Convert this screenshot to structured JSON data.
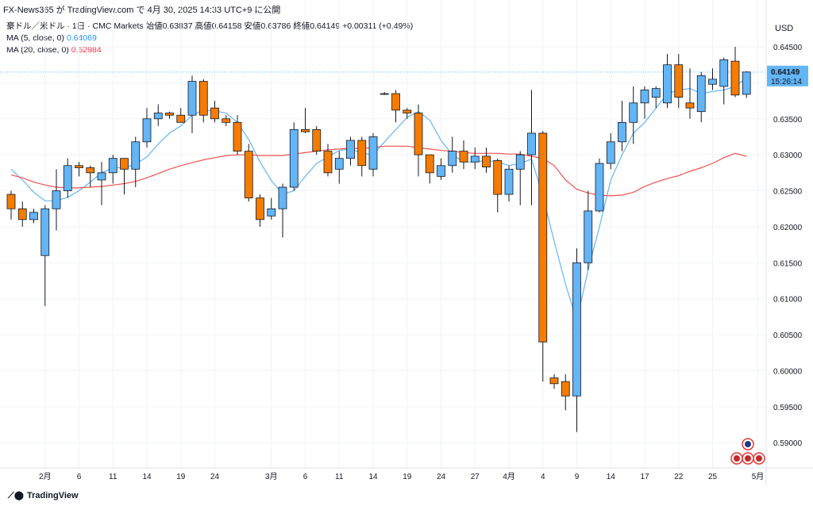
{
  "header": {
    "caption": "FX-News365 が TradingView.com で 4月 30, 2025 14:33 UTC+9 に公開",
    "symbol_line": "豪ドル／米ドル · 1日 · CMC Markets",
    "ohlc": "始値0.63837  高値0.64158  安値0.63786  終値0.64149  +0.00311 (+0.49%)",
    "ma5_label": "MA (5, close, 0)",
    "ma5_value": "0.64069",
    "ma20_label": "MA (20, close, 0)",
    "ma20_value": "0.62984",
    "currency": "USD"
  },
  "price_badge": {
    "price": "0.64149",
    "countdown": "15:26:14"
  },
  "footer": {
    "brand": "TradingView"
  },
  "colors": {
    "up": "#64b5f6",
    "down": "#f57c00",
    "ma5": "#64b5f6",
    "ma20": "#ef5350",
    "wick": "#131722"
  },
  "chart_data": {
    "type": "candlestick",
    "title": "豪ドル／米ドル · 1日 · CMC Markets",
    "ylim": [
      0.5865,
      0.6515
    ],
    "y_ticks": [
      "0.59000",
      "0.59500",
      "0.60000",
      "0.60500",
      "0.61000",
      "0.61500",
      "0.62000",
      "0.62500",
      "0.63000",
      "0.63500",
      "0.64000",
      "0.64500"
    ],
    "x_labels": [
      {
        "i": 3,
        "label": "2月"
      },
      {
        "i": 6,
        "label": "6"
      },
      {
        "i": 9,
        "label": "11"
      },
      {
        "i": 12,
        "label": "14"
      },
      {
        "i": 15,
        "label": "19"
      },
      {
        "i": 18,
        "label": "24"
      },
      {
        "i": 23,
        "label": "3月"
      },
      {
        "i": 26,
        "label": "6"
      },
      {
        "i": 29,
        "label": "11"
      },
      {
        "i": 32,
        "label": "14"
      },
      {
        "i": 35,
        "label": "19"
      },
      {
        "i": 38,
        "label": "24"
      },
      {
        "i": 41,
        "label": "27"
      },
      {
        "i": 44,
        "label": "4月"
      },
      {
        "i": 47,
        "label": "4"
      },
      {
        "i": 50,
        "label": "9"
      },
      {
        "i": 53,
        "label": "14"
      },
      {
        "i": 56,
        "label": "17"
      },
      {
        "i": 59,
        "label": "22"
      },
      {
        "i": 62,
        "label": "25"
      },
      {
        "i": 66,
        "label": "5月"
      }
    ],
    "candles": [
      [
        0.6245,
        0.625,
        0.621,
        0.6225
      ],
      [
        0.6225,
        0.6235,
        0.62,
        0.621
      ],
      [
        0.621,
        0.6225,
        0.6205,
        0.622
      ],
      [
        0.616,
        0.623,
        0.609,
        0.6225
      ],
      [
        0.6225,
        0.628,
        0.6195,
        0.625
      ],
      [
        0.625,
        0.6295,
        0.624,
        0.6285
      ],
      [
        0.6285,
        0.629,
        0.627,
        0.6282
      ],
      [
        0.6282,
        0.6285,
        0.6255,
        0.6275
      ],
      [
        0.6265,
        0.629,
        0.623,
        0.6275
      ],
      [
        0.6275,
        0.63,
        0.626,
        0.6295
      ],
      [
        0.6295,
        0.6295,
        0.6245,
        0.628
      ],
      [
        0.628,
        0.6325,
        0.6255,
        0.6318
      ],
      [
        0.6318,
        0.6365,
        0.631,
        0.635
      ],
      [
        0.635,
        0.637,
        0.634,
        0.6358
      ],
      [
        0.6358,
        0.636,
        0.635,
        0.6355
      ],
      [
        0.6355,
        0.6365,
        0.6345,
        0.6345
      ],
      [
        0.6355,
        0.641,
        0.633,
        0.6402
      ],
      [
        0.6402,
        0.6405,
        0.6345,
        0.6355
      ],
      [
        0.6365,
        0.6375,
        0.6345,
        0.635
      ],
      [
        0.635,
        0.6355,
        0.634,
        0.6345
      ],
      [
        0.6345,
        0.6355,
        0.63,
        0.6305
      ],
      [
        0.6305,
        0.6315,
        0.6235,
        0.624
      ],
      [
        0.624,
        0.6245,
        0.62,
        0.621
      ],
      [
        0.6215,
        0.624,
        0.621,
        0.6225
      ],
      [
        0.6225,
        0.626,
        0.6185,
        0.6255
      ],
      [
        0.6255,
        0.6345,
        0.625,
        0.6335
      ],
      [
        0.6335,
        0.6365,
        0.633,
        0.6332
      ],
      [
        0.6335,
        0.634,
        0.63,
        0.6305
      ],
      [
        0.6305,
        0.6315,
        0.627,
        0.6275
      ],
      [
        0.628,
        0.6305,
        0.626,
        0.6295
      ],
      [
        0.6295,
        0.6325,
        0.6285,
        0.632
      ],
      [
        0.632,
        0.6325,
        0.627,
        0.6285
      ],
      [
        0.628,
        0.633,
        0.627,
        0.6325
      ],
      [
        0.6385,
        0.6387,
        0.6383,
        0.6385
      ],
      [
        0.6385,
        0.639,
        0.6345,
        0.6362
      ],
      [
        0.6362,
        0.6365,
        0.635,
        0.6358
      ],
      [
        0.6358,
        0.637,
        0.627,
        0.63
      ],
      [
        0.63,
        0.63,
        0.626,
        0.6275
      ],
      [
        0.627,
        0.6295,
        0.6265,
        0.6285
      ],
      [
        0.6285,
        0.6325,
        0.6275,
        0.6305
      ],
      [
        0.6305,
        0.632,
        0.628,
        0.629
      ],
      [
        0.629,
        0.631,
        0.628,
        0.6298
      ],
      [
        0.6298,
        0.631,
        0.6275,
        0.6283
      ],
      [
        0.6292,
        0.6295,
        0.622,
        0.6245
      ],
      [
        0.6245,
        0.6285,
        0.6235,
        0.628
      ],
      [
        0.628,
        0.6305,
        0.623,
        0.63
      ],
      [
        0.63,
        0.639,
        0.623,
        0.633
      ],
      [
        0.633,
        0.6333,
        0.5985,
        0.604
      ],
      [
        0.599,
        0.5995,
        0.5975,
        0.5982
      ],
      [
        0.5985,
        0.5995,
        0.5945,
        0.5965
      ],
      [
        0.5965,
        0.617,
        0.5915,
        0.615
      ],
      [
        0.615,
        0.625,
        0.614,
        0.6222
      ],
      [
        0.6222,
        0.6295,
        0.622,
        0.6288
      ],
      [
        0.6288,
        0.633,
        0.628,
        0.6318
      ],
      [
        0.6318,
        0.6375,
        0.6305,
        0.6345
      ],
      [
        0.6345,
        0.6395,
        0.6315,
        0.6372
      ],
      [
        0.6372,
        0.6395,
        0.635,
        0.639
      ],
      [
        0.638,
        0.6395,
        0.6365,
        0.6392
      ],
      [
        0.6372,
        0.644,
        0.6365,
        0.6425
      ],
      [
        0.6425,
        0.644,
        0.6365,
        0.638
      ],
      [
        0.6372,
        0.642,
        0.635,
        0.6365
      ],
      [
        0.636,
        0.6415,
        0.6345,
        0.641
      ],
      [
        0.6398,
        0.642,
        0.639,
        0.6405
      ],
      [
        0.6395,
        0.6435,
        0.637,
        0.6432
      ],
      [
        0.643,
        0.645,
        0.638,
        0.6383
      ],
      [
        0.6384,
        0.6416,
        0.6379,
        0.6415
      ]
    ],
    "series": [
      {
        "name": "MA (5, close, 0)",
        "values": [
          0.628,
          0.6265,
          0.6248,
          0.6236,
          0.6236,
          0.6241,
          0.625,
          0.6262,
          0.6275,
          0.6282,
          0.6282,
          0.6287,
          0.6297,
          0.6315,
          0.633,
          0.634,
          0.6355,
          0.6362,
          0.6361,
          0.6358,
          0.6345,
          0.6321,
          0.629,
          0.6264,
          0.6245,
          0.625,
          0.627,
          0.6288,
          0.6297,
          0.6306,
          0.6308,
          0.6302,
          0.63,
          0.6318,
          0.6335,
          0.6352,
          0.636,
          0.6348,
          0.632,
          0.63,
          0.629,
          0.629,
          0.6292,
          0.629,
          0.6285,
          0.6288,
          0.6294,
          0.6243,
          0.618,
          0.612,
          0.607,
          0.614,
          0.62,
          0.6265,
          0.63,
          0.633,
          0.6345,
          0.6365,
          0.6385,
          0.639,
          0.6392,
          0.6385,
          0.6388,
          0.639,
          0.6395,
          0.6407
        ]
      },
      {
        "name": "MA (20, close, 0)",
        "values": [
          0.6272,
          0.6268,
          0.6262,
          0.6258,
          0.6255,
          0.6254,
          0.6254,
          0.6255,
          0.6256,
          0.6258,
          0.626,
          0.6263,
          0.6268,
          0.6274,
          0.628,
          0.6285,
          0.6289,
          0.6293,
          0.6296,
          0.6299,
          0.63,
          0.63,
          0.6299,
          0.6299,
          0.6299,
          0.6301,
          0.6303,
          0.6305,
          0.6307,
          0.6308,
          0.6309,
          0.6309,
          0.631,
          0.6312,
          0.6312,
          0.6312,
          0.631,
          0.6308,
          0.6306,
          0.6305,
          0.6303,
          0.6302,
          0.6302,
          0.6302,
          0.6301,
          0.6301,
          0.6298,
          0.6295,
          0.6285,
          0.6265,
          0.6252,
          0.6247,
          0.6244,
          0.6243,
          0.6244,
          0.6248,
          0.6256,
          0.6262,
          0.6267,
          0.6271,
          0.6277,
          0.6282,
          0.6288,
          0.6296,
          0.6302,
          0.6298
        ]
      }
    ],
    "last_price": 0.64149,
    "legend": "top-left",
    "grid": true
  }
}
